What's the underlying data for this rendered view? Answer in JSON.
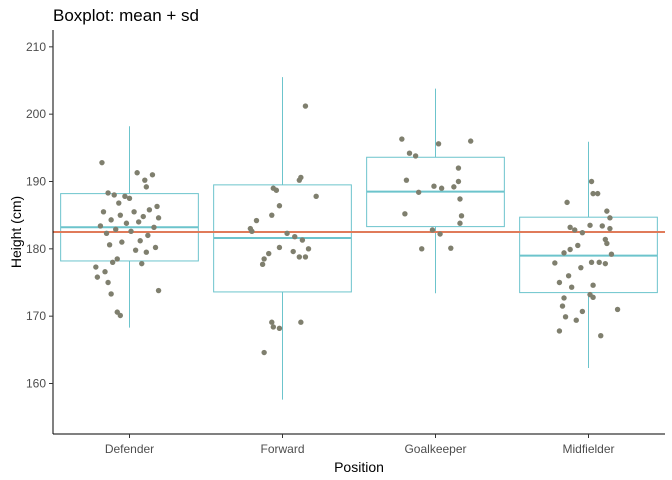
{
  "chart_data": {
    "type": "boxplot",
    "title": "Boxplot: mean + sd",
    "xlabel": "Position",
    "ylabel": "Height (cm)",
    "categories": [
      "Defender",
      "Forward",
      "Goalkeeper",
      "Midfielder"
    ],
    "ylim": [
      152.5,
      212.5
    ],
    "yticks": [
      160,
      170,
      180,
      190,
      200,
      210
    ],
    "grid": false,
    "reference_line": {
      "y": 182.5,
      "color": "#e07b5a"
    },
    "colors": {
      "box": "#6cc4cc",
      "point": "#7f7f6e",
      "axis": "#000000"
    },
    "boxes": [
      {
        "category": "Defender",
        "mean": 183.2,
        "box_low": 178.2,
        "box_high": 188.2,
        "whisker_low": 168.3,
        "whisker_high": 198.2
      },
      {
        "category": "Forward",
        "mean": 181.6,
        "box_low": 173.6,
        "box_high": 189.5,
        "whisker_low": 157.6,
        "whisker_high": 205.5
      },
      {
        "category": "Goalkeeper",
        "mean": 188.5,
        "box_low": 183.3,
        "box_high": 193.6,
        "whisker_low": 173.4,
        "whisker_high": 203.8
      },
      {
        "category": "Midfielder",
        "mean": 179.0,
        "box_low": 173.5,
        "box_high": 184.7,
        "whisker_low": 162.3,
        "whisker_high": 195.9
      }
    ],
    "points": [
      {
        "category": "Defender",
        "x_jitter": -0.18,
        "y": 192.8
      },
      {
        "category": "Defender",
        "x_jitter": 0.05,
        "y": 191.3
      },
      {
        "category": "Defender",
        "x_jitter": 0.15,
        "y": 191.0
      },
      {
        "category": "Defender",
        "x_jitter": 0.1,
        "y": 190.2
      },
      {
        "category": "Defender",
        "x_jitter": 0.11,
        "y": 189.2
      },
      {
        "category": "Defender",
        "x_jitter": -0.14,
        "y": 188.3
      },
      {
        "category": "Defender",
        "x_jitter": -0.1,
        "y": 188.0
      },
      {
        "category": "Defender",
        "x_jitter": -0.03,
        "y": 187.8
      },
      {
        "category": "Defender",
        "x_jitter": 0.0,
        "y": 187.5
      },
      {
        "category": "Defender",
        "x_jitter": -0.07,
        "y": 186.8
      },
      {
        "category": "Defender",
        "x_jitter": 0.18,
        "y": 186.3
      },
      {
        "category": "Defender",
        "x_jitter": 0.13,
        "y": 185.8
      },
      {
        "category": "Defender",
        "x_jitter": -0.17,
        "y": 185.5
      },
      {
        "category": "Defender",
        "x_jitter": 0.03,
        "y": 185.5
      },
      {
        "category": "Defender",
        "x_jitter": -0.06,
        "y": 185.0
      },
      {
        "category": "Defender",
        "x_jitter": 0.09,
        "y": 184.8
      },
      {
        "category": "Defender",
        "x_jitter": 0.19,
        "y": 184.6
      },
      {
        "category": "Defender",
        "x_jitter": -0.12,
        "y": 184.3
      },
      {
        "category": "Defender",
        "x_jitter": 0.06,
        "y": 184.0
      },
      {
        "category": "Defender",
        "x_jitter": -0.02,
        "y": 183.8
      },
      {
        "category": "Defender",
        "x_jitter": -0.19,
        "y": 183.4
      },
      {
        "category": "Defender",
        "x_jitter": 0.16,
        "y": 183.2
      },
      {
        "category": "Defender",
        "x_jitter": -0.09,
        "y": 182.9
      },
      {
        "category": "Defender",
        "x_jitter": 0.01,
        "y": 182.6
      },
      {
        "category": "Defender",
        "x_jitter": -0.15,
        "y": 182.3
      },
      {
        "category": "Defender",
        "x_jitter": 0.12,
        "y": 182.0
      },
      {
        "category": "Defender",
        "x_jitter": 0.07,
        "y": 181.2
      },
      {
        "category": "Defender",
        "x_jitter": -0.05,
        "y": 181.0
      },
      {
        "category": "Defender",
        "x_jitter": -0.13,
        "y": 180.6
      },
      {
        "category": "Defender",
        "x_jitter": 0.17,
        "y": 180.2
      },
      {
        "category": "Defender",
        "x_jitter": 0.04,
        "y": 179.8
      },
      {
        "category": "Defender",
        "x_jitter": 0.11,
        "y": 179.5
      },
      {
        "category": "Defender",
        "x_jitter": -0.08,
        "y": 178.5
      },
      {
        "category": "Defender",
        "x_jitter": -0.11,
        "y": 178.0
      },
      {
        "category": "Defender",
        "x_jitter": 0.08,
        "y": 177.8
      },
      {
        "category": "Defender",
        "x_jitter": -0.22,
        "y": 177.3
      },
      {
        "category": "Defender",
        "x_jitter": -0.16,
        "y": 176.6
      },
      {
        "category": "Defender",
        "x_jitter": -0.21,
        "y": 175.8
      },
      {
        "category": "Defender",
        "x_jitter": -0.14,
        "y": 175.0
      },
      {
        "category": "Defender",
        "x_jitter": -0.12,
        "y": 173.3
      },
      {
        "category": "Defender",
        "x_jitter": 0.19,
        "y": 173.8
      },
      {
        "category": "Defender",
        "x_jitter": -0.08,
        "y": 170.6
      },
      {
        "category": "Defender",
        "x_jitter": -0.06,
        "y": 170.1
      },
      {
        "category": "Forward",
        "x_jitter": 0.15,
        "y": 201.2
      },
      {
        "category": "Forward",
        "x_jitter": 0.12,
        "y": 190.6
      },
      {
        "category": "Forward",
        "x_jitter": 0.11,
        "y": 190.2
      },
      {
        "category": "Forward",
        "x_jitter": -0.06,
        "y": 189.0
      },
      {
        "category": "Forward",
        "x_jitter": -0.04,
        "y": 188.7
      },
      {
        "category": "Forward",
        "x_jitter": 0.22,
        "y": 187.8
      },
      {
        "category": "Forward",
        "x_jitter": -0.02,
        "y": 186.4
      },
      {
        "category": "Forward",
        "x_jitter": -0.07,
        "y": 185.0
      },
      {
        "category": "Forward",
        "x_jitter": -0.17,
        "y": 184.2
      },
      {
        "category": "Forward",
        "x_jitter": -0.21,
        "y": 183.0
      },
      {
        "category": "Forward",
        "x_jitter": -0.2,
        "y": 182.6
      },
      {
        "category": "Forward",
        "x_jitter": 0.03,
        "y": 182.3
      },
      {
        "category": "Forward",
        "x_jitter": 0.08,
        "y": 181.8
      },
      {
        "category": "Forward",
        "x_jitter": 0.13,
        "y": 181.3
      },
      {
        "category": "Forward",
        "x_jitter": -0.02,
        "y": 180.2
      },
      {
        "category": "Forward",
        "x_jitter": 0.17,
        "y": 180.0
      },
      {
        "category": "Forward",
        "x_jitter": 0.07,
        "y": 179.6
      },
      {
        "category": "Forward",
        "x_jitter": -0.09,
        "y": 179.3
      },
      {
        "category": "Forward",
        "x_jitter": 0.15,
        "y": 178.8
      },
      {
        "category": "Forward",
        "x_jitter": -0.12,
        "y": 178.5
      },
      {
        "category": "Forward",
        "x_jitter": 0.11,
        "y": 178.8
      },
      {
        "category": "Forward",
        "x_jitter": -0.13,
        "y": 177.7
      },
      {
        "category": "Forward",
        "x_jitter": -0.07,
        "y": 169.1
      },
      {
        "category": "Forward",
        "x_jitter": -0.06,
        "y": 168.4
      },
      {
        "category": "Forward",
        "x_jitter": 0.12,
        "y": 169.1
      },
      {
        "category": "Forward",
        "x_jitter": -0.02,
        "y": 168.2
      },
      {
        "category": "Forward",
        "x_jitter": -0.12,
        "y": 164.6
      },
      {
        "category": "Goalkeeper",
        "x_jitter": -0.22,
        "y": 196.3
      },
      {
        "category": "Goalkeeper",
        "x_jitter": 0.23,
        "y": 196.0
      },
      {
        "category": "Goalkeeper",
        "x_jitter": 0.02,
        "y": 195.6
      },
      {
        "category": "Goalkeeper",
        "x_jitter": -0.17,
        "y": 194.2
      },
      {
        "category": "Goalkeeper",
        "x_jitter": -0.13,
        "y": 193.8
      },
      {
        "category": "Goalkeeper",
        "x_jitter": 0.15,
        "y": 192.0
      },
      {
        "category": "Goalkeeper",
        "x_jitter": -0.19,
        "y": 190.2
      },
      {
        "category": "Goalkeeper",
        "x_jitter": 0.15,
        "y": 190.0
      },
      {
        "category": "Goalkeeper",
        "x_jitter": -0.01,
        "y": 189.3
      },
      {
        "category": "Goalkeeper",
        "x_jitter": 0.04,
        "y": 189.0
      },
      {
        "category": "Goalkeeper",
        "x_jitter": 0.12,
        "y": 189.2
      },
      {
        "category": "Goalkeeper",
        "x_jitter": -0.11,
        "y": 188.4
      },
      {
        "category": "Goalkeeper",
        "x_jitter": 0.16,
        "y": 187.4
      },
      {
        "category": "Goalkeeper",
        "x_jitter": -0.2,
        "y": 185.2
      },
      {
        "category": "Goalkeeper",
        "x_jitter": 0.17,
        "y": 184.9
      },
      {
        "category": "Goalkeeper",
        "x_jitter": 0.16,
        "y": 183.8
      },
      {
        "category": "Goalkeeper",
        "x_jitter": -0.02,
        "y": 182.8
      },
      {
        "category": "Goalkeeper",
        "x_jitter": 0.03,
        "y": 182.2
      },
      {
        "category": "Goalkeeper",
        "x_jitter": -0.09,
        "y": 180.0
      },
      {
        "category": "Goalkeeper",
        "x_jitter": 0.1,
        "y": 180.1
      },
      {
        "category": "Midfielder",
        "x_jitter": 0.02,
        "y": 190.0
      },
      {
        "category": "Midfielder",
        "x_jitter": 0.06,
        "y": 188.2
      },
      {
        "category": "Midfielder",
        "x_jitter": 0.03,
        "y": 188.2
      },
      {
        "category": "Midfielder",
        "x_jitter": -0.14,
        "y": 186.9
      },
      {
        "category": "Midfielder",
        "x_jitter": 0.12,
        "y": 185.6
      },
      {
        "category": "Midfielder",
        "x_jitter": 0.14,
        "y": 184.6
      },
      {
        "category": "Midfielder",
        "x_jitter": 0.01,
        "y": 183.5
      },
      {
        "category": "Midfielder",
        "x_jitter": 0.09,
        "y": 183.4
      },
      {
        "category": "Midfielder",
        "x_jitter": -0.12,
        "y": 183.2
      },
      {
        "category": "Midfielder",
        "x_jitter": -0.09,
        "y": 182.8
      },
      {
        "category": "Midfielder",
        "x_jitter": 0.14,
        "y": 183.0
      },
      {
        "category": "Midfielder",
        "x_jitter": -0.04,
        "y": 182.4
      },
      {
        "category": "Midfielder",
        "x_jitter": 0.11,
        "y": 181.4
      },
      {
        "category": "Midfielder",
        "x_jitter": 0.12,
        "y": 180.8
      },
      {
        "category": "Midfielder",
        "x_jitter": -0.07,
        "y": 180.5
      },
      {
        "category": "Midfielder",
        "x_jitter": -0.12,
        "y": 179.9
      },
      {
        "category": "Midfielder",
        "x_jitter": -0.16,
        "y": 179.4
      },
      {
        "category": "Midfielder",
        "x_jitter": 0.15,
        "y": 179.2
      },
      {
        "category": "Midfielder",
        "x_jitter": -0.22,
        "y": 177.9
      },
      {
        "category": "Midfielder",
        "x_jitter": 0.02,
        "y": 178.0
      },
      {
        "category": "Midfielder",
        "x_jitter": 0.07,
        "y": 178.0
      },
      {
        "category": "Midfielder",
        "x_jitter": 0.11,
        "y": 177.8
      },
      {
        "category": "Midfielder",
        "x_jitter": -0.05,
        "y": 177.2
      },
      {
        "category": "Midfielder",
        "x_jitter": -0.13,
        "y": 176.0
      },
      {
        "category": "Midfielder",
        "x_jitter": -0.19,
        "y": 175.0
      },
      {
        "category": "Midfielder",
        "x_jitter": 0.03,
        "y": 174.6
      },
      {
        "category": "Midfielder",
        "x_jitter": -0.11,
        "y": 174.3
      },
      {
        "category": "Midfielder",
        "x_jitter": 0.01,
        "y": 173.2
      },
      {
        "category": "Midfielder",
        "x_jitter": 0.03,
        "y": 172.8
      },
      {
        "category": "Midfielder",
        "x_jitter": -0.16,
        "y": 172.7
      },
      {
        "category": "Midfielder",
        "x_jitter": -0.17,
        "y": 171.5
      },
      {
        "category": "Midfielder",
        "x_jitter": 0.19,
        "y": 171.0
      },
      {
        "category": "Midfielder",
        "x_jitter": -0.04,
        "y": 170.7
      },
      {
        "category": "Midfielder",
        "x_jitter": -0.15,
        "y": 169.9
      },
      {
        "category": "Midfielder",
        "x_jitter": -0.08,
        "y": 169.4
      },
      {
        "category": "Midfielder",
        "x_jitter": -0.19,
        "y": 167.8
      },
      {
        "category": "Midfielder",
        "x_jitter": 0.08,
        "y": 167.1
      }
    ]
  }
}
